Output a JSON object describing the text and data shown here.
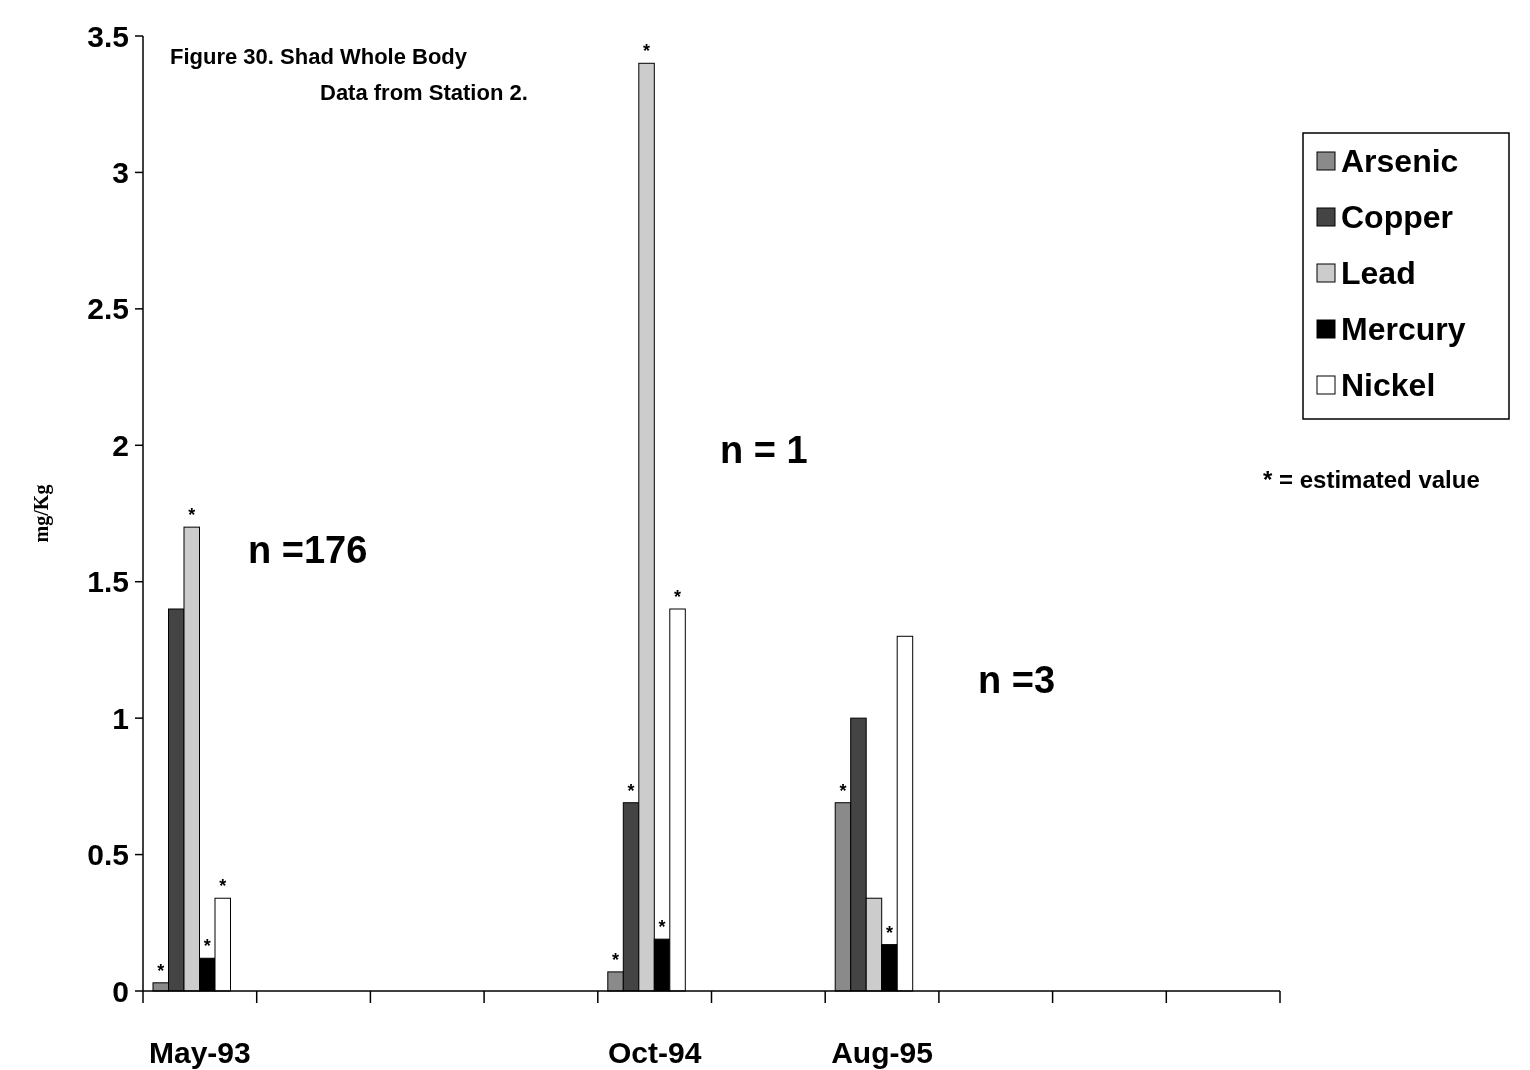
{
  "chart_data": {
    "type": "bar",
    "title": "Figure 30. Shad Whole Body Data from Station 2.",
    "ylabel": "mg/Kg",
    "categories": [
      "May-93",
      null,
      null,
      null,
      "Oct-94",
      null,
      "Aug-95",
      null,
      null,
      null
    ],
    "series": [
      {
        "name": "Arsenic",
        "color": "#8a8a8a",
        "values": [
          0.03,
          null,
          null,
          null,
          0.07,
          null,
          0.69,
          null,
          null,
          null
        ]
      },
      {
        "name": "Copper",
        "color": "#444444",
        "values": [
          1.4,
          null,
          null,
          null,
          0.69,
          null,
          1.0,
          null,
          null,
          null
        ]
      },
      {
        "name": "Lead",
        "color": "#cccccc",
        "values": [
          1.7,
          null,
          null,
          null,
          3.4,
          null,
          0.34,
          null,
          null,
          null
        ]
      },
      {
        "name": "Mercury",
        "color": "#000000",
        "values": [
          0.12,
          null,
          null,
          null,
          0.19,
          null,
          0.17,
          null,
          null,
          null
        ]
      },
      {
        "name": "Nickel",
        "color": "#ffffff",
        "values": [
          0.34,
          null,
          null,
          null,
          1.4,
          null,
          1.3,
          null,
          null,
          null
        ]
      }
    ],
    "ylim": [
      0,
      3.5
    ],
    "yticks": [
      0,
      0.5,
      1,
      1.5,
      2,
      2.5,
      3,
      3.5
    ],
    "grid": false,
    "legend": "right",
    "annotations": [
      "n =176",
      "n = 1",
      "n =3",
      "* = estimated value",
      "*",
      {
        "text": "*",
        "x": "May-93",
        "y": 0.03
      },
      {
        "text": "*",
        "x": "May-93",
        "y": 1.7
      },
      {
        "text": "*",
        "x": "May-93",
        "y": 0.12
      },
      {
        "text": "*",
        "x": "May-93",
        "y": 0.34
      },
      {
        "text": "*",
        "x": "Oct-94",
        "y": 0.07
      },
      {
        "text": "*",
        "x": "Oct-94",
        "y": 0.69
      },
      {
        "text": "*",
        "x": "Oct-94",
        "y": 3.4
      },
      {
        "text": "*",
        "x": "Oct-94",
        "y": 0.19
      },
      {
        "text": "*",
        "x": "Oct-94",
        "y": 1.4
      },
      {
        "text": "*",
        "x": "Aug-95",
        "y": 0.17
      }
    ]
  }
}
